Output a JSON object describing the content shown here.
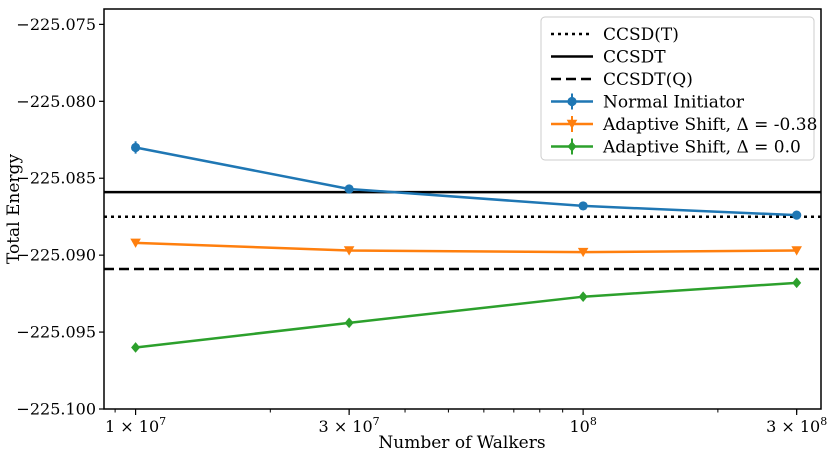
{
  "chart_data": {
    "type": "line",
    "xlabel": "Number of Walkers",
    "ylabel": "Total Energy",
    "xscale": "log",
    "xlim": [
      8500000.0,
      340000000.0
    ],
    "ylim": [
      -225.1,
      -225.074
    ],
    "y_ticks": [
      {
        "value": -225.1,
        "label": "−225.100"
      },
      {
        "value": -225.095,
        "label": "−225.095"
      },
      {
        "value": -225.09,
        "label": "−225.090"
      },
      {
        "value": -225.085,
        "label": "−225.085"
      },
      {
        "value": -225.08,
        "label": "−225.080"
      },
      {
        "value": -225.075,
        "label": "−225.075"
      }
    ],
    "x_ticks": [
      {
        "value": 10000000.0,
        "mant": "1 × 10",
        "exp": "7"
      },
      {
        "value": 30000000.0,
        "mant": "3 × 10",
        "exp": "7"
      },
      {
        "value": 100000000.0,
        "mant": "10",
        "exp": "8"
      },
      {
        "value": 300000000.0,
        "mant": "3 × 10",
        "exp": "8"
      }
    ],
    "grid": false,
    "legend_position": "top-right",
    "reference_lines": [
      {
        "name": "CCSD(T)",
        "y": -225.0875,
        "style": "dotted",
        "color": "#000000"
      },
      {
        "name": "CCSDT",
        "y": -225.0859,
        "style": "solid",
        "color": "#000000"
      },
      {
        "name": "CCSDT(Q)",
        "y": -225.0909,
        "style": "dashed",
        "color": "#000000"
      }
    ],
    "series": [
      {
        "name": "Normal Initiator",
        "color": "#1f77b4",
        "marker": "circle",
        "x": [
          10000000.0,
          30000000.0,
          100000000.0,
          300000000.0
        ],
        "y": [
          -225.083,
          -225.0857,
          -225.0868,
          -225.0874
        ],
        "err": [
          0.0004,
          0.0002,
          0.0001,
          0.0001
        ]
      },
      {
        "name": "Adaptive Shift, Δ = -0.38",
        "color": "#ff7f0e",
        "marker": "triangle-down",
        "x": [
          10000000.0,
          30000000.0,
          100000000.0,
          300000000.0
        ],
        "y": [
          -225.0892,
          -225.0897,
          -225.0898,
          -225.0897
        ],
        "err": [
          0.0002,
          0.0001,
          0.0001,
          0.0001
        ]
      },
      {
        "name": "Adaptive Shift, Δ =  0.0",
        "color": "#2ca02c",
        "marker": "diamond",
        "x": [
          10000000.0,
          30000000.0,
          100000000.0,
          300000000.0
        ],
        "y": [
          -225.096,
          -225.0944,
          -225.0927,
          -225.0918
        ],
        "err": [
          0.0002,
          0.0001,
          0.0001,
          0.0001
        ]
      }
    ]
  }
}
